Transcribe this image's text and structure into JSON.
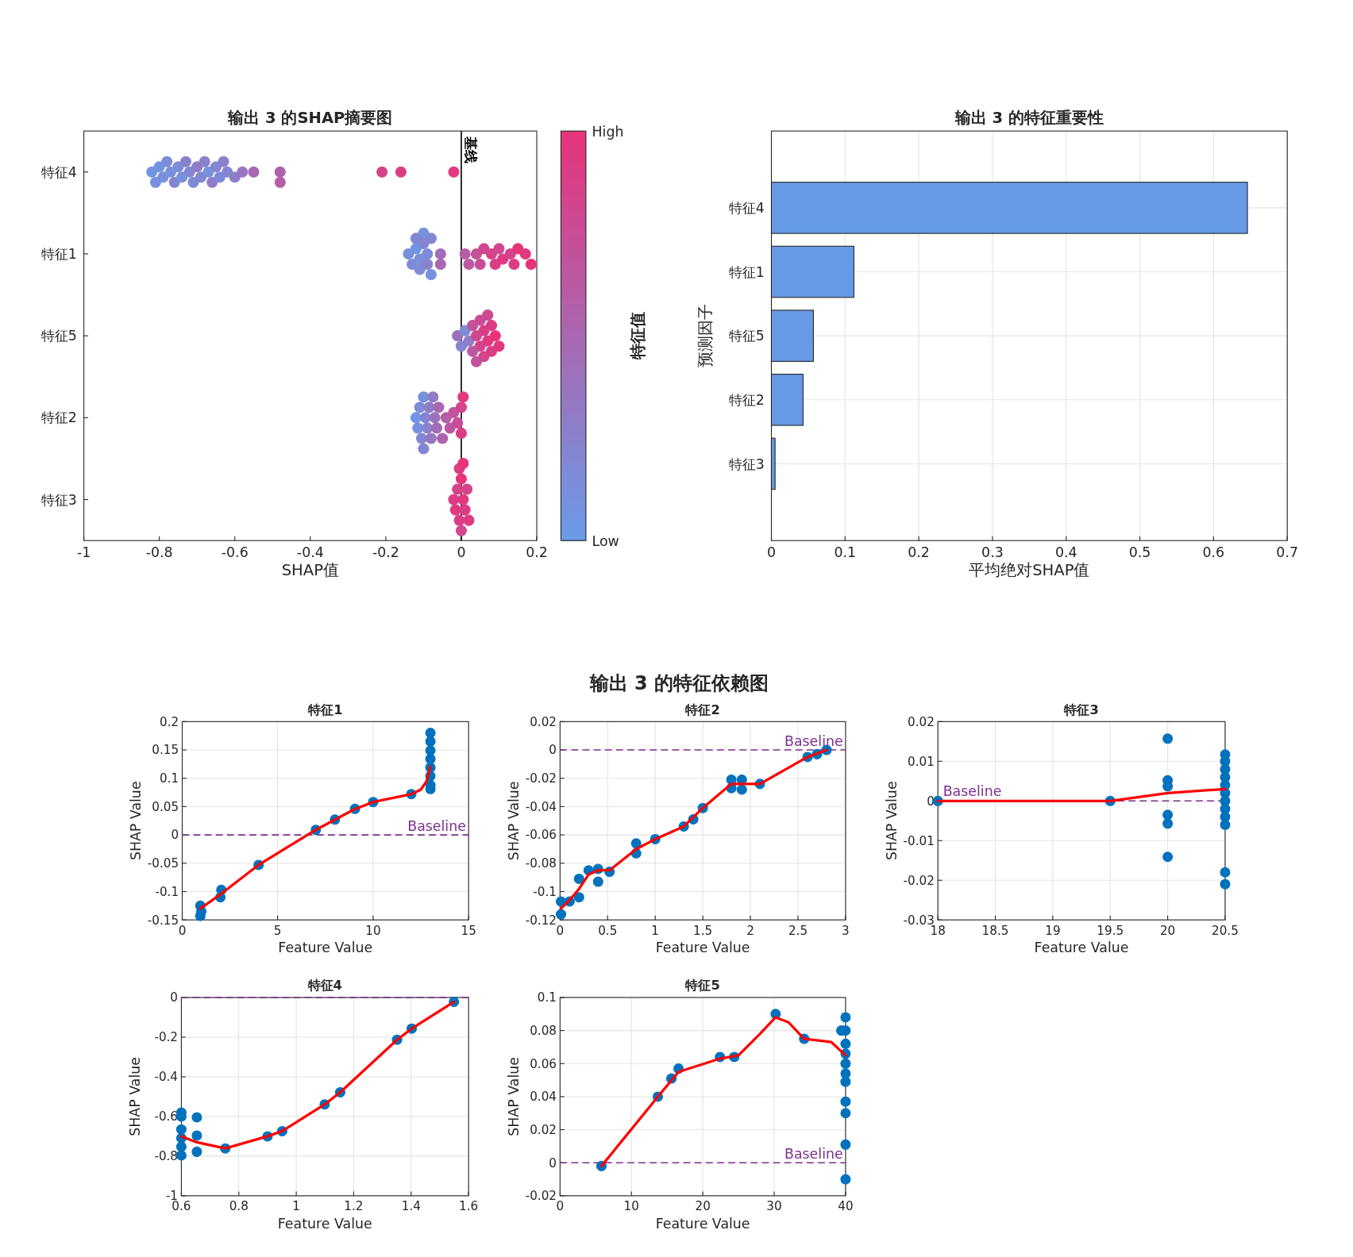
{
  "chart_data": [
    {
      "type": "scatter",
      "orientation": "horizontal",
      "title": "输出 3 的SHAP摘要图",
      "xlabel": "SHAP值",
      "clabel": "特征值",
      "marker": "circle",
      "categories": [
        "特征4",
        "特征1",
        "特征5",
        "特征2",
        "特征3"
      ],
      "xlim": [
        -1,
        0.2
      ],
      "xticks": [
        -1,
        -0.8,
        -0.6,
        -0.4,
        -0.2,
        0,
        0.2
      ],
      "clim": [
        0,
        1
      ],
      "cticks": [
        {
          "value": 0,
          "label": "Low"
        },
        {
          "value": 1,
          "label": "High"
        }
      ],
      "ref_lines": [
        {
          "axis": "x",
          "value": 0,
          "label": "基线",
          "color": "#000000",
          "line_style": "solid"
        }
      ],
      "series": [
        {
          "x": [
            "特征4",
            "特征4",
            "特征4",
            "特征4",
            "特征4",
            "特征4",
            "特征4",
            "特征4",
            "特征4",
            "特征4",
            "特征4",
            "特征4",
            "特征4",
            "特征4",
            "特征4",
            "特征4",
            "特征4",
            "特征4",
            "特征4",
            "特征4",
            "特征4",
            "特征4",
            "特征4",
            "特征4",
            "特征4",
            "特征4",
            "特征4",
            "特征4",
            "特征4"
          ],
          "values": [
            -0.82,
            -0.81,
            -0.8,
            -0.79,
            -0.78,
            -0.77,
            -0.76,
            -0.75,
            -0.74,
            -0.73,
            -0.72,
            -0.71,
            -0.7,
            -0.69,
            -0.68,
            -0.67,
            -0.66,
            -0.65,
            -0.64,
            -0.63,
            -0.62,
            -0.6,
            -0.58,
            -0.55,
            -0.48,
            -0.48,
            -0.21,
            -0.16,
            -0.02
          ],
          "colors": [
            "#7096e3",
            "#7791dd",
            "#7493df",
            "#798fdb",
            "#7d8bd8",
            "#7791dd",
            "#8386d2",
            "#7d8bd8",
            "#7791dd",
            "#8a81cd",
            "#8386d2",
            "#7d8bd8",
            "#907cc7",
            "#8386d2",
            "#8a81cd",
            "#7791dd",
            "#907cc7",
            "#8386d2",
            "#7d8bd8",
            "#8a81cd",
            "#8386d2",
            "#907cc7",
            "#9677c2",
            "#a967b1",
            "#af62ac",
            "#b65da6",
            "#d5438b",
            "#db3d85",
            "#e23880"
          ],
          "cvalues": [
            0.05,
            0.1,
            0.08,
            0.12,
            0.15,
            0.1,
            0.2,
            0.15,
            0.1,
            0.25,
            0.2,
            0.15,
            0.3,
            0.2,
            0.25,
            0.1,
            0.3,
            0.2,
            0.15,
            0.25,
            0.2,
            0.3,
            0.35,
            0.5,
            0.55,
            0.6,
            0.85,
            0.9,
            0.95
          ]
        },
        {
          "x": [
            "特征1",
            "特征1",
            "特征1",
            "特征1",
            "特征1",
            "特征1",
            "特征1",
            "特征1",
            "特征1",
            "特征1",
            "特征1",
            "特征1",
            "特征1",
            "特征1",
            "特征1",
            "特征1",
            "特征1",
            "特征1",
            "特征1",
            "特征1",
            "特征1",
            "特征1",
            "特征1",
            "特征1",
            "特征1",
            "特征1",
            "特征1",
            "特征1"
          ],
          "values": [
            -0.14,
            -0.13,
            -0.12,
            -0.12,
            -0.11,
            -0.11,
            -0.1,
            -0.1,
            -0.09,
            -0.09,
            -0.08,
            -0.08,
            -0.055,
            -0.055,
            0.01,
            0.02,
            0.04,
            0.05,
            0.06,
            0.08,
            0.09,
            0.1,
            0.11,
            0.13,
            0.14,
            0.15,
            0.17,
            0.185
          ],
          "colors": [
            "#7791dd",
            "#7d8bd8",
            "#7096e3",
            "#8386d2",
            "#7791dd",
            "#7d8bd8",
            "#8386d2",
            "#7791dd",
            "#7d8bd8",
            "#8a81cd",
            "#8386d2",
            "#7791dd",
            "#a36cb7",
            "#a967b1",
            "#b65da6",
            "#bc57a1",
            "#c2529b",
            "#c94d96",
            "#cf4890",
            "#d5438b",
            "#db3d85",
            "#cf4890",
            "#e23880",
            "#d5438b",
            "#db3d85",
            "#e8337a",
            "#e23880",
            "#e8337a"
          ],
          "cvalues": [
            0.1,
            0.15,
            0.05,
            0.2,
            0.1,
            0.15,
            0.2,
            0.1,
            0.15,
            0.25,
            0.2,
            0.1,
            0.45,
            0.5,
            0.6,
            0.65,
            0.7,
            0.75,
            0.8,
            0.85,
            0.9,
            0.8,
            0.95,
            0.85,
            0.9,
            1,
            0.95,
            1
          ]
        },
        {
          "x": [
            "特征5",
            "特征5",
            "特征5",
            "特征5",
            "特征5",
            "特征5",
            "特征5",
            "特征5",
            "特征5",
            "特征5",
            "特征5",
            "特征5",
            "特征5",
            "特征5",
            "特征5",
            "特征5",
            "特征5",
            "特征5"
          ],
          "values": [
            -0.01,
            0,
            0.01,
            0.02,
            0.03,
            0.04,
            0.05,
            0.06,
            0.07,
            0.08,
            0.09,
            0.1,
            0.05,
            0.06,
            0.07,
            0.08,
            0.03,
            0.04
          ],
          "colors": [
            "#9c71bc",
            "#8386d2",
            "#7d8bd8",
            "#907cc7",
            "#c2529b",
            "#cf4890",
            "#d5438b",
            "#db3d85",
            "#e23880",
            "#db3d85",
            "#e8337a",
            "#e23880",
            "#c94d96",
            "#d5438b",
            "#cf4890",
            "#db3d85",
            "#bc57a1",
            "#c2529b"
          ],
          "cvalues": [
            0.4,
            0.2,
            0.15,
            0.3,
            0.7,
            0.8,
            0.85,
            0.9,
            0.95,
            0.9,
            1,
            0.95,
            0.75,
            0.85,
            0.8,
            0.9,
            0.65,
            0.7
          ]
        },
        {
          "x": [
            "特征2",
            "特征2",
            "特征2",
            "特征2",
            "特征2",
            "特征2",
            "特征2",
            "特征2",
            "特征2",
            "特征2",
            "特征2",
            "特征2",
            "特征2",
            "特征2",
            "特征2",
            "特征2",
            "特征2",
            "特征2",
            "特征2",
            "特征2",
            "特征2",
            "特征2"
          ],
          "values": [
            -0.12,
            -0.115,
            -0.11,
            -0.105,
            -0.1,
            -0.095,
            -0.09,
            -0.085,
            -0.08,
            -0.075,
            -0.07,
            -0.065,
            -0.06,
            -0.05,
            -0.04,
            -0.03,
            -0.02,
            -0.01,
            0,
            0,
            0.005,
            -0.1
          ],
          "colors": [
            "#7096e3",
            "#7791dd",
            "#7d8bd8",
            "#8386d2",
            "#7791dd",
            "#8386d2",
            "#8a81cd",
            "#907cc7",
            "#9677c2",
            "#907cc7",
            "#9c71bc",
            "#a36cb7",
            "#a967b1",
            "#af62ac",
            "#b65da6",
            "#bc57a1",
            "#c2529b",
            "#c94d96",
            "#d5438b",
            "#db3d85",
            "#e23880",
            "#8386d2"
          ],
          "cvalues": [
            0.05,
            0.1,
            0.15,
            0.2,
            0.1,
            0.2,
            0.25,
            0.3,
            0.35,
            0.3,
            0.4,
            0.45,
            0.5,
            0.55,
            0.6,
            0.65,
            0.7,
            0.75,
            0.85,
            0.9,
            0.95,
            0.2
          ]
        },
        {
          "x": [
            "特征3",
            "特征3",
            "特征3",
            "特征3",
            "特征3",
            "特征3",
            "特征3",
            "特征3",
            "特征3",
            "特征3",
            "特征3",
            "特征3"
          ],
          "values": [
            -0.02,
            -0.015,
            -0.01,
            -0.005,
            0,
            0.005,
            0.01,
            0.015,
            0.02,
            0,
            -0.005,
            0.005
          ],
          "colors": [
            "#db3d85",
            "#e23880",
            "#d5438b",
            "#db3d85",
            "#e8337a",
            "#e23880",
            "#db3d85",
            "#d5438b",
            "#e23880",
            "#cf4890",
            "#db3d85",
            "#e8337a"
          ],
          "cvalues": [
            0.9,
            0.95,
            0.85,
            0.9,
            1,
            0.95,
            0.9,
            0.85,
            0.95,
            0.8,
            0.9,
            1
          ]
        }
      ]
    },
    {
      "type": "bar",
      "orientation": "horizontal",
      "title": "输出 3 的特征重要性",
      "xlabel": "平均绝对SHAP值",
      "ylabel": "预测因子",
      "grid": true,
      "color": "#6699e6",
      "categories": [
        "特征4",
        "特征1",
        "特征5",
        "特征2",
        "特征3"
      ],
      "values": [
        0.646,
        0.112,
        0.057,
        0.043,
        0.005
      ],
      "xlim": [
        0,
        0.7
      ],
      "xticks": [
        0,
        0.1,
        0.2,
        0.3,
        0.4,
        0.5,
        0.6,
        0.7
      ]
    },
    {
      "type": "scatter",
      "title": "特征1",
      "xlabel": "Feature Value",
      "ylabel": "SHAP Value",
      "grid": true,
      "marker": "circle",
      "annotations": [
        "输出 3 的特征依赖图"
      ],
      "xlim": [
        0,
        15
      ],
      "xticks": [
        0,
        5,
        10,
        15
      ],
      "ylim": [
        -0.15,
        0.2
      ],
      "yticks": [
        -0.15,
        -0.1,
        -0.05,
        0,
        0.05,
        0.1,
        0.15,
        0.2
      ],
      "ref_lines": [
        {
          "axis": "y",
          "value": 0,
          "label": "Baseline",
          "color": "#7e2f8e",
          "line_style": "dashed"
        }
      ],
      "series": [
        {
          "type": "scatter",
          "color": "#0072bd",
          "x": [
            0.95,
            0.95,
            1.0,
            2.0,
            2.05,
            4.0,
            7.0,
            8.0,
            9.05,
            10.0,
            12.0,
            13.0,
            13.0,
            13.0,
            13.0,
            13.0,
            13.0,
            13.0,
            13.0
          ],
          "values": [
            -0.125,
            -0.143,
            -0.135,
            -0.11,
            -0.097,
            -0.053,
            0.009,
            0.027,
            0.046,
            0.058,
            0.072,
            0.18,
            0.165,
            0.149,
            0.134,
            0.119,
            0.104,
            0.088,
            0.081
          ]
        },
        {
          "type": "line",
          "marker": "none",
          "color": "#ff0000",
          "x": [
            0.95,
            2,
            4,
            7,
            9,
            10,
            12,
            12.5,
            12.8,
            13
          ],
          "values": [
            -0.13,
            -0.105,
            -0.053,
            0.009,
            0.045,
            0.058,
            0.072,
            0.08,
            0.095,
            0.12
          ]
        }
      ]
    },
    {
      "type": "scatter",
      "title": "特征2",
      "xlabel": "Feature Value",
      "ylabel": "SHAP Value",
      "grid": true,
      "marker": "circle",
      "xlim": [
        0,
        3
      ],
      "xticks": [
        0,
        0.5,
        1,
        1.5,
        2,
        2.5,
        3
      ],
      "ylim": [
        -0.12,
        0.02
      ],
      "yticks": [
        -0.12,
        -0.1,
        -0.08,
        -0.06,
        -0.04,
        -0.02,
        0,
        0.02
      ],
      "ref_lines": [
        {
          "axis": "y",
          "value": 0,
          "label": "Baseline",
          "color": "#7e2f8e",
          "line_style": "dashed"
        }
      ],
      "series": [
        {
          "type": "scatter",
          "color": "#0072bd",
          "x": [
            0.01,
            0.01,
            0.1,
            0.2,
            0.2,
            0.3,
            0.4,
            0.4,
            0.52,
            0.8,
            0.8,
            1.0,
            1.3,
            1.4,
            1.5,
            1.8,
            1.8,
            1.91,
            1.91,
            2.1,
            2.6,
            2.7,
            2.8
          ],
          "values": [
            -0.107,
            -0.116,
            -0.107,
            -0.104,
            -0.091,
            -0.085,
            -0.084,
            -0.093,
            -0.086,
            -0.066,
            -0.073,
            -0.063,
            -0.054,
            -0.049,
            -0.041,
            -0.021,
            -0.027,
            -0.021,
            -0.028,
            -0.024,
            -0.005,
            -0.003,
            0.0
          ]
        },
        {
          "type": "line",
          "marker": "none",
          "color": "#ff0000",
          "x": [
            0.01,
            0.1,
            0.2,
            0.3,
            0.4,
            0.52,
            0.8,
            1.0,
            1.3,
            1.5,
            1.8,
            1.91,
            2.1,
            2.6,
            2.8
          ],
          "values": [
            -0.112,
            -0.106,
            -0.098,
            -0.088,
            -0.085,
            -0.085,
            -0.07,
            -0.063,
            -0.054,
            -0.041,
            -0.024,
            -0.024,
            -0.024,
            -0.005,
            0.0
          ]
        }
      ]
    },
    {
      "type": "scatter",
      "title": "特征3",
      "xlabel": "Feature Value",
      "ylabel": "SHAP Value",
      "grid": true,
      "marker": "circle",
      "xlim": [
        18,
        20.5
      ],
      "xticks": [
        18,
        18.5,
        19,
        19.5,
        20,
        20.5
      ],
      "ylim": [
        -0.03,
        0.02
      ],
      "yticks": [
        -0.03,
        -0.02,
        -0.01,
        0,
        0.01,
        0.02
      ],
      "ref_lines": [
        {
          "axis": "y",
          "value": 0,
          "label": "Baseline",
          "color": "#7e2f8e",
          "line_style": "dashed"
        }
      ],
      "series": [
        {
          "type": "scatter",
          "color": "#0072bd",
          "x": [
            18,
            19.5,
            20,
            20,
            20,
            20,
            20,
            20,
            20.5,
            20.5,
            20.5,
            20.5,
            20.5,
            20.5,
            20.5,
            20.5,
            20.5,
            20.5,
            20.5,
            20.5
          ],
          "values": [
            0,
            0,
            0.0157,
            0.0052,
            0.0037,
            -0.0035,
            -0.0057,
            -0.0141,
            0.0117,
            0.01,
            0.008,
            0.006,
            0.004,
            0.002,
            0,
            -0.002,
            -0.004,
            -0.006,
            -0.018,
            -0.021
          ]
        },
        {
          "type": "line",
          "marker": "none",
          "color": "#ff0000",
          "x": [
            18,
            19.5,
            20,
            20.5
          ],
          "values": [
            0,
            0,
            0.002,
            0.003
          ]
        }
      ]
    },
    {
      "type": "scatter",
      "title": "特征4",
      "xlabel": "Feature Value",
      "ylabel": "SHAP Value",
      "grid": true,
      "marker": "circle",
      "xlim": [
        0.6,
        1.6
      ],
      "xticks": [
        0.6,
        0.8,
        1,
        1.2,
        1.4,
        1.6
      ],
      "ylim": [
        -1,
        0
      ],
      "yticks": [
        -1,
        -0.8,
        -0.6,
        -0.4,
        -0.2,
        0
      ],
      "ref_lines": [
        {
          "axis": "y",
          "value": 0,
          "color": "#7e2f8e",
          "line_style": "dashed"
        }
      ],
      "series": [
        {
          "type": "scatter",
          "color": "#0072bd",
          "x": [
            0.6,
            0.6,
            0.6,
            0.6,
            0.6,
            0.6,
            0.654,
            0.654,
            0.654,
            0.753,
            0.9,
            0.951,
            1.099,
            1.153,
            1.351,
            1.402,
            1.549
          ],
          "values": [
            -0.58,
            -0.6,
            -0.665,
            -0.709,
            -0.752,
            -0.796,
            -0.604,
            -0.696,
            -0.778,
            -0.761,
            -0.7,
            -0.674,
            -0.539,
            -0.478,
            -0.213,
            -0.157,
            -0.022
          ]
        },
        {
          "type": "line",
          "marker": "none",
          "color": "#ff0000",
          "x": [
            0.6,
            0.654,
            0.753,
            0.9,
            0.951,
            1.099,
            1.153,
            1.351,
            1.402,
            1.549
          ],
          "values": [
            -0.7,
            -0.73,
            -0.761,
            -0.7,
            -0.674,
            -0.539,
            -0.478,
            -0.213,
            -0.157,
            -0.022
          ]
        }
      ]
    },
    {
      "type": "scatter",
      "title": "特征5",
      "xlabel": "Feature Value",
      "ylabel": "SHAP Value",
      "grid": true,
      "marker": "circle",
      "xlim": [
        0,
        40
      ],
      "xticks": [
        0,
        10,
        20,
        30,
        40
      ],
      "ylim": [
        -0.02,
        0.1
      ],
      "yticks": [
        -0.02,
        0,
        0.02,
        0.04,
        0.06,
        0.08,
        0.1
      ],
      "ref_lines": [
        {
          "axis": "y",
          "value": 0,
          "label": "Baseline",
          "color": "#7e2f8e",
          "line_style": "dashed"
        }
      ],
      "series": [
        {
          "type": "scatter",
          "color": "#0072bd",
          "x": [
            5.8,
            13.7,
            15.6,
            16.6,
            22.4,
            24.4,
            30.2,
            34.2,
            39.4,
            40,
            40,
            40,
            40,
            40,
            40,
            40,
            40,
            40,
            40,
            40
          ],
          "values": [
            -0.002,
            0.04,
            0.051,
            0.057,
            0.064,
            0.064,
            0.09,
            0.075,
            0.08,
            0.088,
            0.08,
            0.072,
            0.066,
            0.06,
            0.054,
            0.049,
            0.037,
            0.03,
            0.011,
            -0.01
          ]
        },
        {
          "type": "line",
          "marker": "none",
          "color": "#ff0000",
          "x": [
            5.8,
            13.7,
            16.6,
            22.4,
            25,
            28,
            30.2,
            32,
            34.2,
            38,
            40
          ],
          "values": [
            -0.002,
            0.04,
            0.055,
            0.063,
            0.065,
            0.078,
            0.088,
            0.085,
            0.075,
            0.073,
            0.065
          ]
        }
      ]
    }
  ]
}
